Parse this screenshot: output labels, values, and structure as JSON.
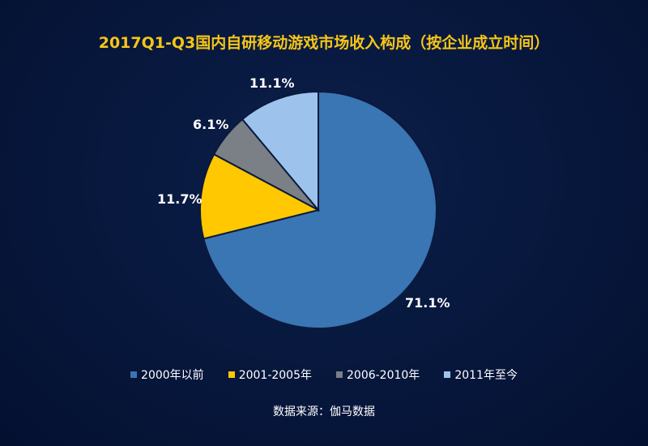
{
  "title": "2017Q1-Q3国内自研移动游戏市场收入构成（按企业成立时间）",
  "source": "数据来源：伽马数据",
  "legend": [
    {
      "label": "2000年以前",
      "color": "#3a75b4"
    },
    {
      "label": "2001-2005年",
      "color": "#ffc800"
    },
    {
      "label": "2006-2010年",
      "color": "#7b7f86"
    },
    {
      "label": "2011年至今",
      "color": "#9dc3ec"
    }
  ],
  "labels": {
    "s0": "71.1%",
    "s1": "11.7%",
    "s2": "6.1%",
    "s3": "11.1%"
  },
  "chart_data": {
    "type": "pie",
    "title": "2017Q1-Q3国内自研移动游戏市场收入构成（按企业成立时间）",
    "categories": [
      "2000年以前",
      "2001-2005年",
      "2006-2010年",
      "2011年至今"
    ],
    "values": [
      71.1,
      11.7,
      6.1,
      11.1
    ],
    "unit": "%",
    "colors": [
      "#3a75b4",
      "#ffc800",
      "#7b7f86",
      "#9dc3ec"
    ],
    "legend_position": "bottom",
    "source": "数据来源：伽马数据"
  }
}
